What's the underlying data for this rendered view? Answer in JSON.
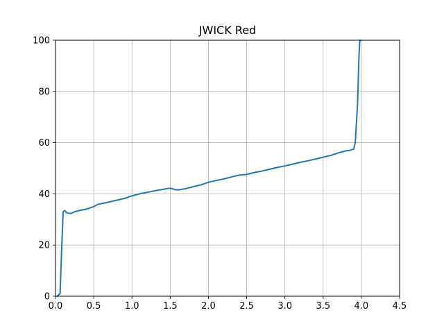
{
  "chart_data": {
    "type": "line",
    "title": "JWICK Red",
    "xlabel": "",
    "ylabel": "",
    "xlim": [
      0,
      4.5
    ],
    "ylim": [
      0,
      100
    ],
    "xticks": [
      0.0,
      0.5,
      1.0,
      1.5,
      2.0,
      2.5,
      3.0,
      3.5,
      4.0,
      4.5
    ],
    "xtick_labels": [
      "0.0",
      "0.5",
      "1.0",
      "1.5",
      "2.0",
      "2.5",
      "3.0",
      "3.5",
      "4.0",
      "4.5"
    ],
    "yticks": [
      0,
      20,
      40,
      60,
      80,
      100
    ],
    "ytick_labels": [
      "0",
      "20",
      "40",
      "60",
      "80",
      "100"
    ],
    "grid": true,
    "line_color": "#1f77b4",
    "series": [
      {
        "x": [
          0.02,
          0.04,
          0.06,
          0.08,
          0.1,
          0.12,
          0.15,
          0.2,
          0.25,
          0.3,
          0.4,
          0.5,
          0.55,
          0.6,
          0.7,
          0.8,
          0.9,
          1.0,
          1.05,
          1.1,
          1.2,
          1.3,
          1.4,
          1.45,
          1.5,
          1.55,
          1.6,
          1.7,
          1.8,
          1.9,
          2.0,
          2.1,
          2.2,
          2.3,
          2.4,
          2.5,
          2.6,
          2.7,
          2.8,
          2.9,
          3.0,
          3.1,
          3.2,
          3.3,
          3.4,
          3.5,
          3.55,
          3.6,
          3.7,
          3.8,
          3.85,
          3.9,
          3.92,
          3.94,
          3.95,
          3.96,
          3.97,
          3.98,
          3.99
        ],
        "y": [
          0,
          0.5,
          1,
          18,
          33,
          33.5,
          32.5,
          32.3,
          33,
          33.4,
          34,
          35,
          35.8,
          36.2,
          36.8,
          37.5,
          38.2,
          39.2,
          39.6,
          40,
          40.6,
          41.2,
          41.7,
          42,
          42.2,
          41.8,
          41.5,
          42,
          42.8,
          43.5,
          44.5,
          45.2,
          45.8,
          46.6,
          47.3,
          47.6,
          48.3,
          48.9,
          49.6,
          50.3,
          50.9,
          51.6,
          52.3,
          52.9,
          53.6,
          54.3,
          54.7,
          55,
          56,
          56.8,
          57,
          57.5,
          60,
          70,
          75,
          85,
          95,
          100,
          100
        ]
      }
    ]
  }
}
